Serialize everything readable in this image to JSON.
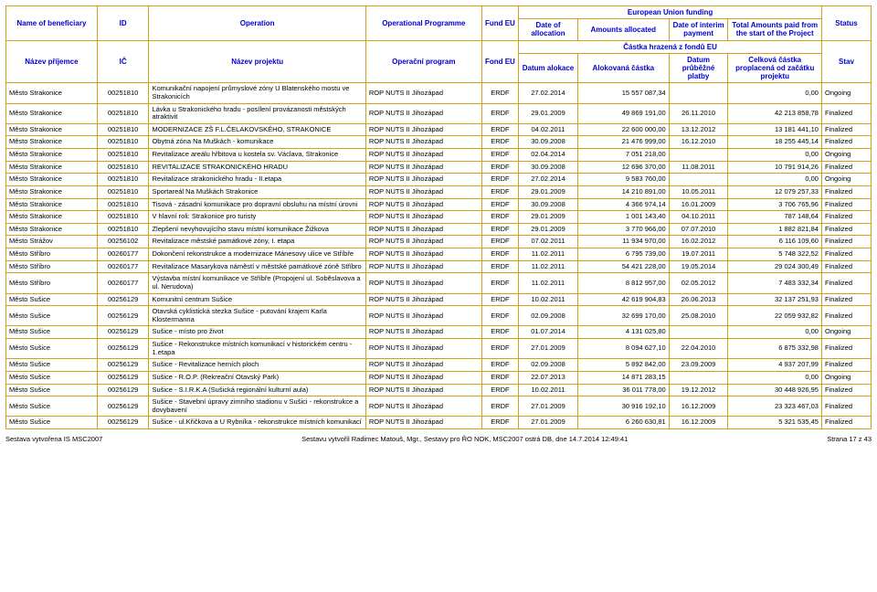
{
  "colors": {
    "border": "#d4a017",
    "header_text": "#0000cc",
    "body_text": "#000000",
    "background": "#ffffff"
  },
  "typography": {
    "font_family": "Verdana",
    "header_fontsize_pt": 8,
    "body_fontsize_pt": 7.5
  },
  "headers_en": {
    "beneficiary": "Name of beneficiary",
    "id": "ID",
    "operation": "Operation",
    "programme": "Operational Programme",
    "fund": "Fund EU",
    "eu_group": "European Union funding",
    "alloc_date": "Date of allocation",
    "amounts": "Amounts allocated",
    "interim": "Date of interim payment",
    "total": "Total Amounts paid from the start of the Project",
    "status": "Status"
  },
  "headers_cs": {
    "beneficiary": "Název příjemce",
    "id": "IČ",
    "operation": "Název projektu",
    "programme": "Operační program",
    "fund": "Fond EU",
    "group": "Částka hrazená z fondů EU",
    "alloc_date": "Datum alokace",
    "amounts": "Alokovaná částka",
    "interim": "Datum průběžné platby",
    "total": "Celková částka proplacená od začátku projektu",
    "status": "Stav"
  },
  "rows": [
    {
      "b": "Město Strakonice",
      "id": "00251810",
      "op": "Komunikační napojení průmyslové zóny U Blatenského mostu ve Strakonicích",
      "prog": "ROP NUTS II Jihozápad",
      "fund": "ERDF",
      "ad": "27.02.2014",
      "amt": "15 557 087,34",
      "ip": "",
      "tot": "0,00",
      "st": "Ongoing"
    },
    {
      "b": "Město Strakonice",
      "id": "00251810",
      "op": "Lávka u Strakonického hradu - posílení provázanosti městských atraktivit",
      "prog": "ROP NUTS II Jihozápad",
      "fund": "ERDF",
      "ad": "29.01.2009",
      "amt": "49 869 191,00",
      "ip": "26.11.2010",
      "tot": "42 213 858,78",
      "st": "Finalized"
    },
    {
      "b": "Město Strakonice",
      "id": "00251810",
      "op": "MODERNIZACE ZŠ F.L.ČELAKOVSKÉHO, STRAKONICE",
      "prog": "ROP NUTS II Jihozápad",
      "fund": "ERDF",
      "ad": "04.02.2011",
      "amt": "22 600 000,00",
      "ip": "13.12.2012",
      "tot": "13 181 441,10",
      "st": "Finalized"
    },
    {
      "b": "Město Strakonice",
      "id": "00251810",
      "op": "Obytná zóna Na Muškách - komunikace",
      "prog": "ROP NUTS II Jihozápad",
      "fund": "ERDF",
      "ad": "30.09.2008",
      "amt": "21 476 999,00",
      "ip": "16.12.2010",
      "tot": "18 255 445,14",
      "st": "Finalized"
    },
    {
      "b": "Město Strakonice",
      "id": "00251810",
      "op": "Revitalizace areálu hřbitova u kostela sv. Václava, Strakonice",
      "prog": "ROP NUTS II Jihozápad",
      "fund": "ERDF",
      "ad": "02.04.2014",
      "amt": "7 051 218,00",
      "ip": "",
      "tot": "0,00",
      "st": "Ongoing"
    },
    {
      "b": "Město Strakonice",
      "id": "00251810",
      "op": "REVITALIZACE STRAKONICKÉHO HRADU",
      "prog": "ROP NUTS II Jihozápad",
      "fund": "ERDF",
      "ad": "30.09.2008",
      "amt": "12 696 370,00",
      "ip": "11.08.2011",
      "tot": "10 791 914,26",
      "st": "Finalized"
    },
    {
      "b": "Město Strakonice",
      "id": "00251810",
      "op": "Revitalizace strakonického hradu - II.etapa",
      "prog": "ROP NUTS II Jihozápad",
      "fund": "ERDF",
      "ad": "27.02.2014",
      "amt": "9 583 760,00",
      "ip": "",
      "tot": "0,00",
      "st": "Ongoing"
    },
    {
      "b": "Město Strakonice",
      "id": "00251810",
      "op": "Sportareál Na Muškách Strakonice",
      "prog": "ROP NUTS II Jihozápad",
      "fund": "ERDF",
      "ad": "29.01.2009",
      "amt": "14 210 891,00",
      "ip": "10.05.2011",
      "tot": "12 079 257,33",
      "st": "Finalized"
    },
    {
      "b": "Město Strakonice",
      "id": "00251810",
      "op": "Tisová - zásadní komunikace pro dopravní obsluhu na místní úrovni",
      "prog": "ROP NUTS II Jihozápad",
      "fund": "ERDF",
      "ad": "30.09.2008",
      "amt": "4 366 974,14",
      "ip": "16.01.2009",
      "tot": "3 706 765,96",
      "st": "Finalized"
    },
    {
      "b": "Město Strakonice",
      "id": "00251810",
      "op": "V hlavní roli: Strakonice pro turisty",
      "prog": "ROP NUTS II Jihozápad",
      "fund": "ERDF",
      "ad": "29.01.2009",
      "amt": "1 001 143,40",
      "ip": "04.10.2011",
      "tot": "787 148,64",
      "st": "Finalized"
    },
    {
      "b": "Město Strakonice",
      "id": "00251810",
      "op": "Zlepšení nevyhovujícího stavu místní komunikace Žižkova",
      "prog": "ROP NUTS II Jihozápad",
      "fund": "ERDF",
      "ad": "29.01.2009",
      "amt": "3 770 966,00",
      "ip": "07.07.2010",
      "tot": "1 882 821,84",
      "st": "Finalized"
    },
    {
      "b": "Město Strážov",
      "id": "00256102",
      "op": "Revitalizace městské památkové zóny, I. etapa",
      "prog": "ROP NUTS II Jihozápad",
      "fund": "ERDF",
      "ad": "07.02.2011",
      "amt": "11 934 970,00",
      "ip": "16.02.2012",
      "tot": "6 116 109,60",
      "st": "Finalized"
    },
    {
      "b": "Město Stříbro",
      "id": "00260177",
      "op": "Dokončení rekonstrukce a modernizace Mánesovy ulice ve Stříbře",
      "prog": "ROP NUTS II Jihozápad",
      "fund": "ERDF",
      "ad": "11.02.2011",
      "amt": "6 795 739,00",
      "ip": "19.07.2011",
      "tot": "5 748 322,52",
      "st": "Finalized"
    },
    {
      "b": "Město Stříbro",
      "id": "00260177",
      "op": "Revitalizace Masarykova náměstí v městské památkové zóně Stříbro",
      "prog": "ROP NUTS II Jihozápad",
      "fund": "ERDF",
      "ad": "11.02.2011",
      "amt": "54 421 228,00",
      "ip": "19.05.2014",
      "tot": "29 024 300,49",
      "st": "Finalized"
    },
    {
      "b": "Město Stříbro",
      "id": "00260177",
      "op": "Výstavba místní komunikace ve Stříbře (Propojení ul. Soběslavova a ul. Nerudova)",
      "prog": "ROP NUTS II Jihozápad",
      "fund": "ERDF",
      "ad": "11.02.2011",
      "amt": "8 812 957,00",
      "ip": "02.05.2012",
      "tot": "7 483 332,34",
      "st": "Finalized"
    },
    {
      "b": "Město Sušice",
      "id": "00256129",
      "op": "Komunitní centrum Sušice",
      "prog": "ROP NUTS II Jihozápad",
      "fund": "ERDF",
      "ad": "10.02.2011",
      "amt": "42 619 904,83",
      "ip": "26.06.2013",
      "tot": "32 137 251,93",
      "st": "Finalized"
    },
    {
      "b": "Město Sušice",
      "id": "00256129",
      "op": "Otavská cyklistická stezka Sušice - putování krajem Karla Klostermanna",
      "prog": "ROP NUTS II Jihozápad",
      "fund": "ERDF",
      "ad": "02.09.2008",
      "amt": "32 699 170,00",
      "ip": "25.08.2010",
      "tot": "22 059 932,82",
      "st": "Finalized"
    },
    {
      "b": "Město Sušice",
      "id": "00256129",
      "op": "Sušice - místo pro život",
      "prog": "ROP NUTS II Jihozápad",
      "fund": "ERDF",
      "ad": "01.07.2014",
      "amt": "4 131 025,80",
      "ip": "",
      "tot": "0,00",
      "st": "Ongoing"
    },
    {
      "b": "Město Sušice",
      "id": "00256129",
      "op": "Sušice - Rekonstrukce místních komunikací v historickém centru - 1.etapa",
      "prog": "ROP NUTS II Jihozápad",
      "fund": "ERDF",
      "ad": "27.01.2009",
      "amt": "8 094 627,10",
      "ip": "22.04.2010",
      "tot": "6 875 332,98",
      "st": "Finalized"
    },
    {
      "b": "Město Sušice",
      "id": "00256129",
      "op": "Sušice - Revitalizace herních ploch",
      "prog": "ROP NUTS II Jihozápad",
      "fund": "ERDF",
      "ad": "02.09.2008",
      "amt": "5 892 842,00",
      "ip": "23.09.2009",
      "tot": "4 937 207,99",
      "st": "Finalized"
    },
    {
      "b": "Město Sušice",
      "id": "00256129",
      "op": "Sušice - R.O.P. (Rekreační Otavský Park)",
      "prog": "ROP NUTS II Jihozápad",
      "fund": "ERDF",
      "ad": "22.07.2013",
      "amt": "14 871 283,15",
      "ip": "",
      "tot": "0,00",
      "st": "Ongoing"
    },
    {
      "b": "Město Sušice",
      "id": "00256129",
      "op": "Sušice - S.I.R.K.A (Sušická regionální kulturní aula)",
      "prog": "ROP NUTS II Jihozápad",
      "fund": "ERDF",
      "ad": "10.02.2011",
      "amt": "36 011 778,00",
      "ip": "19.12.2012",
      "tot": "30 448 926,95",
      "st": "Finalized"
    },
    {
      "b": "Město Sušice",
      "id": "00256129",
      "op": "Sušice - Stavební úpravy zimního stadionu v Sušici - rekonstrukce a dovybavení",
      "prog": "ROP NUTS II Jihozápad",
      "fund": "ERDF",
      "ad": "27.01.2009",
      "amt": "30 916 192,10",
      "ip": "16.12.2009",
      "tot": "23 323 467,03",
      "st": "Finalized"
    },
    {
      "b": "Město Sušice",
      "id": "00256129",
      "op": "Sušice - ul.Křičkova a U Rybníka - rekonstrukce místních komunikací",
      "prog": "ROP NUTS II Jihozápad",
      "fund": "ERDF",
      "ad": "27.01.2009",
      "amt": "6 260 630,81",
      "ip": "16.12.2009",
      "tot": "5 321 535,45",
      "st": "Finalized"
    }
  ],
  "footer": {
    "left": "Sestava vytvořena IS MSC2007",
    "center": "Sestavu vytvořil Radimec Matouš, Mgr., Sestavy pro ŘO NOK, MSC2007 ostrá DB, dne 14.7.2014 12:49:41",
    "right": "Strana 17 z 43"
  }
}
